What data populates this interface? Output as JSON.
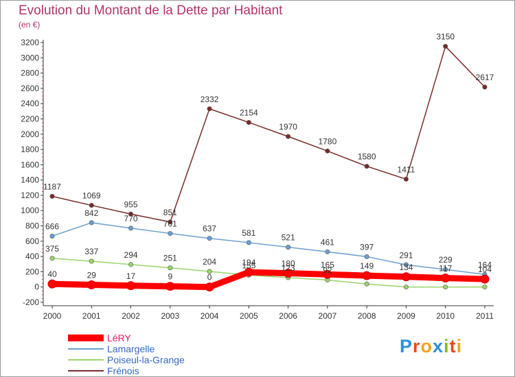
{
  "title": "Evolution du Montant de la Dette par Habitant",
  "unit_label": "(en €)",
  "logo": {
    "text": "Proxiti",
    "letter_colors": [
      "#2d8fd8",
      "#e54b1c",
      "#f1a51a",
      "#2d8fd8",
      "#7fbf2a",
      "#e54b1c",
      "#f1a51a"
    ]
  },
  "chart_data": {
    "type": "line",
    "title": "Evolution du Montant de la Dette par Habitant",
    "ylabel": "(en €)",
    "xlabel": "",
    "categories": [
      "2000",
      "2001",
      "2002",
      "2003",
      "2004",
      "2005",
      "2006",
      "2007",
      "2008",
      "2009",
      "2010",
      "2011"
    ],
    "ylim": [
      -200,
      3200
    ],
    "yticks": [
      -200,
      0,
      200,
      400,
      600,
      800,
      1000,
      1200,
      1400,
      1600,
      1800,
      2000,
      2200,
      2400,
      2600,
      2800,
      3000,
      3200
    ],
    "grid": false,
    "legend_position": "bottom-left",
    "series": [
      {
        "name": "LéRY",
        "color": "#ff0000",
        "values": [
          40,
          29,
          17,
          9,
          0,
          194,
          180,
          165,
          149,
          134,
          117,
          104
        ],
        "labels": [
          "40",
          "29",
          "17",
          "9",
          "0",
          "194",
          "180",
          "165",
          "149",
          "134",
          "117",
          "104"
        ]
      },
      {
        "name": "Lamargelle",
        "color": "#6a9fd0",
        "values": [
          666,
          842,
          770,
          701,
          637,
          581,
          521,
          461,
          397,
          291,
          229,
          164
        ],
        "labels": [
          "666",
          "842",
          "770",
          "701",
          "637",
          "581",
          "521",
          "461",
          "397",
          "291",
          "229",
          "164"
        ]
      },
      {
        "name": "Poiseul-la-Grange",
        "color": "#9ad46a",
        "values": [
          375,
          337,
          294,
          251,
          204,
          155,
          123,
          92,
          40,
          0,
          0,
          0
        ],
        "labels": [
          "375",
          "337",
          "294",
          "251",
          "204",
          "155",
          "123",
          "92",
          "",
          "",
          "",
          ""
        ]
      },
      {
        "name": "Frénois",
        "color": "#7a2a2a",
        "values": [
          1187,
          1069,
          955,
          851,
          2332,
          2154,
          1970,
          1780,
          1580,
          1411,
          3150,
          2617
        ],
        "labels": [
          "1187",
          "1069",
          "955",
          "851",
          "2332",
          "2154",
          "1970",
          "1780",
          "1580",
          "1411",
          "3150",
          "2617"
        ]
      }
    ]
  }
}
